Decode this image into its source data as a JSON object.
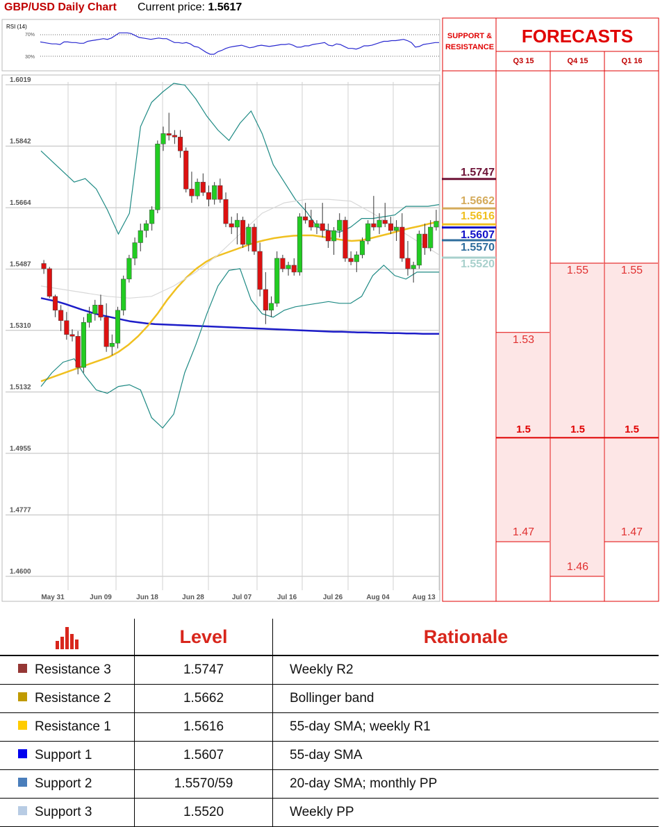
{
  "header": {
    "title": "GBP/USD Daily Chart",
    "price_label": "Current price:",
    "price_value": "1.5617"
  },
  "rsi": {
    "label": "RSI (14)",
    "level_high": "70%",
    "level_low": "30%",
    "values": [
      56,
      55,
      54,
      53,
      53,
      52,
      56,
      56,
      55,
      55,
      54,
      54,
      57,
      58,
      59,
      60,
      61,
      60,
      62,
      66,
      70,
      70,
      70,
      69,
      66,
      63,
      62,
      61,
      60,
      61,
      62,
      61,
      61,
      58,
      55,
      55,
      54,
      55,
      53,
      49,
      48,
      44,
      40,
      37,
      37,
      41,
      43,
      46,
      48,
      49,
      50,
      51,
      49,
      47,
      48,
      50,
      51,
      50,
      49,
      50,
      51,
      52,
      52,
      53,
      51,
      48,
      48,
      50,
      50,
      52,
      53,
      54,
      55,
      51,
      50,
      53,
      52,
      49,
      46,
      46,
      45,
      47,
      50,
      50,
      51,
      53,
      55,
      57,
      57,
      58,
      58,
      59,
      60,
      58,
      55,
      48,
      49,
      52,
      53,
      54,
      55,
      55
    ]
  },
  "chart_data": {
    "type": "candlestick",
    "title": "GBP/USD Daily Chart",
    "y_ticks": [
      "1.6019",
      "1.5842",
      "1.5664",
      "1.5487",
      "1.5310",
      "1.5132",
      "1.4955",
      "1.4777",
      "1.4600"
    ],
    "ylim": [
      1.46,
      1.6019
    ],
    "x_ticks": [
      "May 31",
      "Jun 09",
      "Jun 18",
      "Jun 28",
      "Jul 07",
      "Jul 16",
      "Jul 26",
      "Aug 04",
      "Aug 13"
    ],
    "grid": true,
    "candles": [
      [
        1.5495,
        1.5505,
        1.5465,
        1.548
      ],
      [
        1.548,
        1.5485,
        1.5395,
        1.54
      ],
      [
        1.54,
        1.5405,
        1.534,
        1.536
      ],
      [
        1.536,
        1.5375,
        1.53,
        1.533
      ],
      [
        1.533,
        1.5355,
        1.5275,
        1.529
      ],
      [
        1.529,
        1.5305,
        1.527,
        1.5285
      ],
      [
        1.5285,
        1.53,
        1.5175,
        1.5195
      ],
      [
        1.5195,
        1.534,
        1.518,
        1.5325
      ],
      [
        1.5325,
        1.537,
        1.531,
        1.535
      ],
      [
        1.535,
        1.539,
        1.533,
        1.5375
      ],
      [
        1.5375,
        1.5405,
        1.533,
        1.534
      ],
      [
        1.534,
        1.538,
        1.524,
        1.5255
      ],
      [
        1.5255,
        1.529,
        1.523,
        1.5265
      ],
      [
        1.5265,
        1.537,
        1.525,
        1.536
      ],
      [
        1.536,
        1.546,
        1.5345,
        1.545
      ],
      [
        1.545,
        1.552,
        1.544,
        1.551
      ],
      [
        1.551,
        1.557,
        1.549,
        1.5555
      ],
      [
        1.5555,
        1.561,
        1.553,
        1.559
      ],
      [
        1.559,
        1.562,
        1.557,
        1.561
      ],
      [
        1.561,
        1.566,
        1.559,
        1.565
      ],
      [
        1.565,
        1.585,
        1.564,
        1.584
      ],
      [
        1.584,
        1.589,
        1.582,
        1.587
      ],
      [
        1.587,
        1.593,
        1.585,
        1.5865
      ],
      [
        1.5865,
        1.588,
        1.584,
        1.586
      ],
      [
        1.586,
        1.588,
        1.58,
        1.582
      ],
      [
        1.582,
        1.583,
        1.57,
        1.571
      ],
      [
        1.571,
        1.576,
        1.567,
        1.569
      ],
      [
        1.569,
        1.574,
        1.568,
        1.573
      ],
      [
        1.573,
        1.5755,
        1.569,
        1.57
      ],
      [
        1.57,
        1.572,
        1.566,
        1.568
      ],
      [
        1.568,
        1.573,
        1.5665,
        1.572
      ],
      [
        1.572,
        1.574,
        1.567,
        1.568
      ],
      [
        1.568,
        1.57,
        1.56,
        1.561
      ],
      [
        1.561,
        1.563,
        1.558,
        1.56
      ],
      [
        1.56,
        1.564,
        1.555,
        1.562
      ],
      [
        1.562,
        1.563,
        1.554,
        1.555
      ],
      [
        1.555,
        1.561,
        1.553,
        1.56
      ],
      [
        1.56,
        1.561,
        1.552,
        1.553
      ],
      [
        1.553,
        1.5555,
        1.54,
        1.542
      ],
      [
        1.542,
        1.547,
        1.532,
        1.536
      ],
      [
        1.536,
        1.54,
        1.534,
        1.538
      ],
      [
        1.538,
        1.553,
        1.537,
        1.551
      ],
      [
        1.551,
        1.552,
        1.547,
        1.548
      ],
      [
        1.548,
        1.55,
        1.546,
        1.549
      ],
      [
        1.549,
        1.551,
        1.546,
        1.547
      ],
      [
        1.547,
        1.564,
        1.546,
        1.563
      ],
      [
        1.563,
        1.567,
        1.561,
        1.562
      ],
      [
        1.562,
        1.565,
        1.559,
        1.56
      ],
      [
        1.56,
        1.562,
        1.558,
        1.561
      ],
      [
        1.561,
        1.567,
        1.557,
        1.559
      ],
      [
        1.559,
        1.561,
        1.554,
        1.556
      ],
      [
        1.556,
        1.56,
        1.552,
        1.559
      ],
      [
        1.559,
        1.564,
        1.557,
        1.562
      ],
      [
        1.562,
        1.563,
        1.55,
        1.551
      ],
      [
        1.551,
        1.553,
        1.549,
        1.55
      ],
      [
        1.55,
        1.553,
        1.547,
        1.552
      ],
      [
        1.552,
        1.557,
        1.551,
        1.556
      ],
      [
        1.556,
        1.562,
        1.555,
        1.561
      ],
      [
        1.561,
        1.569,
        1.559,
        1.56
      ],
      [
        1.56,
        1.564,
        1.558,
        1.562
      ],
      [
        1.562,
        1.567,
        1.56,
        1.561
      ],
      [
        1.561,
        1.563,
        1.558,
        1.559
      ],
      [
        1.559,
        1.562,
        1.556,
        1.56
      ],
      [
        1.56,
        1.564,
        1.55,
        1.551
      ],
      [
        1.551,
        1.556,
        1.546,
        1.548
      ],
      [
        1.548,
        1.55,
        1.544,
        1.549
      ],
      [
        1.549,
        1.559,
        1.548,
        1.558
      ],
      [
        1.558,
        1.561,
        1.552,
        1.554
      ],
      [
        1.554,
        1.562,
        1.553,
        1.56
      ],
      [
        1.56,
        1.565,
        1.559,
        1.5617
      ]
    ],
    "series": [
      {
        "name": "",
        "color": "#1c1cc8",
        "values": [
          1.5395,
          1.539,
          1.5385,
          1.5378,
          1.537,
          1.5362,
          1.5355,
          1.5348,
          1.5343,
          1.5338,
          1.5333,
          1.5328,
          1.5325,
          1.5322,
          1.532,
          1.5319,
          1.5318,
          1.5317,
          1.5316,
          1.5315,
          1.5314,
          1.5313,
          1.5312,
          1.5311,
          1.531,
          1.5309,
          1.5308,
          1.5307,
          1.5306,
          1.5305,
          1.5304,
          1.5303,
          1.5302,
          1.5301,
          1.53,
          1.5299,
          1.5298,
          1.5298,
          1.5297,
          1.5296,
          1.5296,
          1.5295,
          1.5295,
          1.5294,
          1.5294,
          1.5293,
          1.5293,
          1.5292,
          1.5292,
          1.5292
        ]
      },
      {
        "name": "",
        "color": "#f0c020",
        "values": [
          1.5155,
          1.5165,
          1.5175,
          1.5185,
          1.5195,
          1.5205,
          1.5215,
          1.5225,
          1.524,
          1.526,
          1.5285,
          1.5315,
          1.535,
          1.539,
          1.5425,
          1.5455,
          1.548,
          1.55,
          1.5515,
          1.5525,
          1.5535,
          1.5545,
          1.5555,
          1.5562,
          1.5568,
          1.5572,
          1.5575,
          1.5576,
          1.5576,
          1.5572,
          1.5567,
          1.5563,
          1.556,
          1.5562,
          1.5568,
          1.5575,
          1.5582,
          1.559,
          1.5597,
          1.5603,
          1.561,
          1.5616
        ]
      },
      {
        "name": "",
        "color": "#1e8a84",
        "values": [
          1.582,
          1.579,
          1.576,
          1.573,
          1.574,
          1.571,
          1.565,
          1.558,
          1.564,
          1.589,
          1.596,
          1.599,
          1.6015,
          1.601,
          1.597,
          1.592,
          1.588,
          1.585,
          1.59,
          1.5935,
          1.587,
          1.578,
          1.573,
          1.568,
          1.5645,
          1.56,
          1.559,
          1.5585,
          1.56,
          1.5625,
          1.5625,
          1.563,
          1.5635,
          1.566,
          1.566,
          1.566,
          1.5665
        ]
      },
      {
        "name": "",
        "color": "#1e8a84",
        "values": [
          1.514,
          1.518,
          1.521,
          1.522,
          1.517,
          1.513,
          1.512,
          1.514,
          1.5145,
          1.513,
          1.505,
          1.502,
          1.506,
          1.518,
          1.526,
          1.535,
          1.543,
          1.5475,
          1.548,
          1.539,
          1.535,
          1.534,
          1.536,
          1.537,
          1.5375,
          1.538,
          1.5385,
          1.538,
          1.538,
          1.54,
          1.546,
          1.549,
          1.546,
          1.545,
          1.547,
          1.547,
          1.547
        ]
      },
      {
        "name": "",
        "color": "#d8d8d8",
        "values": [
          1.543,
          1.542,
          1.541,
          1.54,
          1.5395,
          1.54,
          1.543,
          1.547,
          1.552,
          1.558,
          1.564,
          1.567,
          1.568,
          1.568,
          1.5675,
          1.564,
          1.56,
          1.556,
          1.552
        ]
      }
    ],
    "support_resistance": [
      {
        "value": "1.5747",
        "color": "#6d1236"
      },
      {
        "value": "1.5662",
        "color": "#d4aa5a"
      },
      {
        "value": "1.5616",
        "color": "#f0c020"
      },
      {
        "value": "1.5607",
        "color": "#1010c8"
      },
      {
        "value": "1.5570",
        "color": "#2d6c9c"
      },
      {
        "value": "1.5520",
        "color": "#a8d0cc"
      }
    ],
    "forecasts": {
      "quarters": [
        "Q3 15",
        "Q4 15",
        "Q1 16"
      ],
      "ylim": [
        1.46,
        1.6019
      ],
      "base": "1.5",
      "upper": [
        "1.53",
        "1.55",
        "1.55"
      ],
      "lower": [
        "1.47",
        "1.46",
        "1.47"
      ]
    }
  },
  "panel": {
    "sr_line1": "SUPPORT &",
    "sr_line2": "RESISTANCE",
    "forecast_title": "FORECASTS"
  },
  "table": {
    "header_level": "Level",
    "header_rationale": "Rationale",
    "rows": [
      {
        "name": "Resistance 3",
        "level": "1.5747",
        "rationale": "Weekly R2",
        "color": "#953735"
      },
      {
        "name": "Resistance 2",
        "level": "1.5662",
        "rationale": "Bollinger band",
        "color": "#c09a00"
      },
      {
        "name": "Resistance 1",
        "level": "1.5616",
        "rationale": "55-day SMA; weekly R1",
        "color": "#ffcc00"
      },
      {
        "name": "Support 1",
        "level": "1.5607",
        "rationale": "55-day SMA",
        "color": "#0000ee"
      },
      {
        "name": "Support 2",
        "level": "1.5570/59",
        "rationale": "20-day SMA; monthly PP",
        "color": "#4a7ebb"
      },
      {
        "name": "Support 3",
        "level": "1.5520",
        "rationale": "Weekly PP",
        "color": "#b8cce4"
      }
    ]
  }
}
